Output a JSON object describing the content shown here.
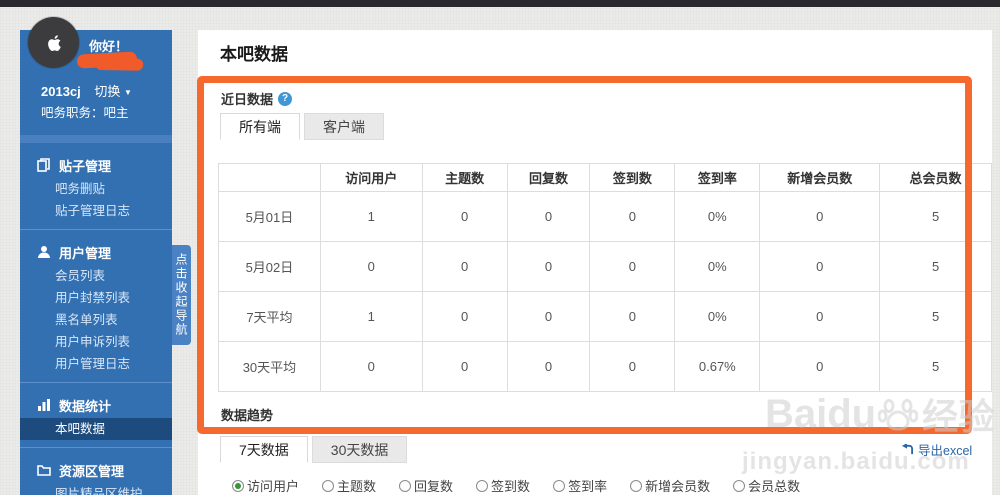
{
  "sidebar": {
    "greeting": "你好！",
    "username": "2013cj",
    "switch_label": "切换",
    "role": "吧务职务：吧主",
    "collapse_label": "点击收起导航",
    "sections": [
      {
        "title": "贴子管理",
        "icon": "pages-icon",
        "items": [
          {
            "label": "吧务删贴",
            "active": false
          },
          {
            "label": "贴子管理日志",
            "active": false
          }
        ]
      },
      {
        "title": "用户管理",
        "icon": "user-icon",
        "items": [
          {
            "label": "会员列表",
            "active": false
          },
          {
            "label": "用户封禁列表",
            "active": false
          },
          {
            "label": "黑名单列表",
            "active": false
          },
          {
            "label": "用户申诉列表",
            "active": false
          },
          {
            "label": "用户管理日志",
            "active": false
          }
        ]
      },
      {
        "title": "数据统计",
        "icon": "chart-icon",
        "items": [
          {
            "label": "本吧数据",
            "active": true
          }
        ]
      },
      {
        "title": "资源区管理",
        "icon": "folder-icon",
        "items": [
          {
            "label": "图片精品区维护",
            "active": false
          }
        ]
      }
    ]
  },
  "main": {
    "page_title": "本吧数据",
    "recent": {
      "title": "近日数据",
      "help_icon": "?",
      "tabs": [
        "所有端",
        "客户端"
      ],
      "active_tab": 0,
      "table": {
        "headers": [
          "",
          "访问用户",
          "主题数",
          "回复数",
          "签到数",
          "签到率",
          "新增会员数",
          "总会员数"
        ],
        "rows": [
          [
            "5月01日",
            "1",
            "0",
            "0",
            "0",
            "0%",
            "0",
            "5"
          ],
          [
            "5月02日",
            "0",
            "0",
            "0",
            "0",
            "0%",
            "0",
            "5"
          ],
          [
            "7天平均",
            "1",
            "0",
            "0",
            "0",
            "0%",
            "0",
            "5"
          ],
          [
            "30天平均",
            "0",
            "0",
            "0",
            "0",
            "0.67%",
            "0",
            "5"
          ]
        ]
      }
    },
    "trend": {
      "title": "数据趋势",
      "tabs": [
        "7天数据",
        "30天数据"
      ],
      "active_tab": 0,
      "metrics": [
        "访问用户",
        "主题数",
        "回复数",
        "签到数",
        "签到率",
        "新增会员数",
        "会员总数"
      ],
      "selected_metric": 0
    },
    "export_label": "导出excel"
  },
  "watermark": {
    "brand": "Baidu",
    "brand_cn": "经验",
    "url": "jingyan.baidu.com"
  },
  "colors": {
    "accent_orange": "#f6692e",
    "sidebar_blue": "#3270b2",
    "sidebar_active": "#1e4b7d",
    "topbar": "#2a2a2e",
    "link_blue": "#2a66a5",
    "radio_green": "#339933",
    "help_blue": "#3f97d6"
  }
}
